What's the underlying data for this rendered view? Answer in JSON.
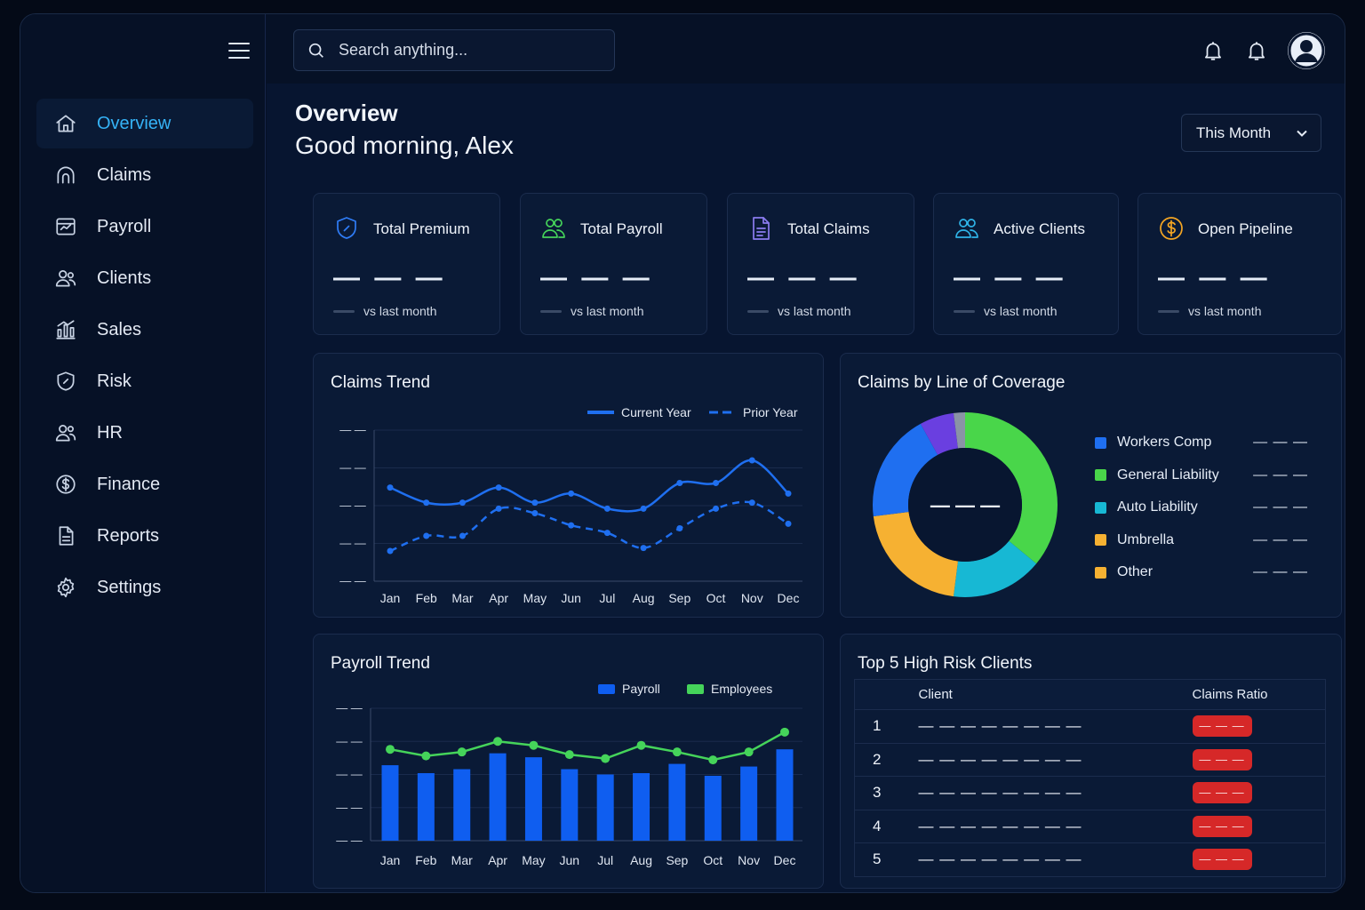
{
  "sidebar": {
    "items": [
      {
        "label": "Overview",
        "icon": "home-icon",
        "active": true
      },
      {
        "label": "Claims",
        "icon": "claims-icon"
      },
      {
        "label": "Payroll",
        "icon": "payroll-icon"
      },
      {
        "label": "Clients",
        "icon": "users-icon"
      },
      {
        "label": "Sales",
        "icon": "bar-chart-icon"
      },
      {
        "label": "Risk",
        "icon": "shield-icon"
      },
      {
        "label": "HR",
        "icon": "people-icon"
      },
      {
        "label": "Finance",
        "icon": "dollar-icon"
      },
      {
        "label": "Reports",
        "icon": "document-icon"
      },
      {
        "label": "Settings",
        "icon": "gear-icon"
      }
    ]
  },
  "topbar": {
    "search_placeholder": "Search anything..."
  },
  "header": {
    "title": "Overview",
    "greeting": "Good morning, Alex",
    "period": "This Month"
  },
  "kpis": [
    {
      "title": "Total Premium",
      "value": "— — —",
      "sub": "vs last month",
      "icon": "shield-icon",
      "color": "#2f7cf6"
    },
    {
      "title": "Total Payroll",
      "value": "— — —",
      "sub": "vs last month",
      "icon": "users-icon",
      "color": "#45d45a"
    },
    {
      "title": "Total Claims",
      "value": "— — —",
      "sub": "vs last month",
      "icon": "document-icon",
      "color": "#8b7cf0"
    },
    {
      "title": "Active Clients",
      "value": "— — —",
      "sub": "vs last month",
      "icon": "users-icon",
      "color": "#2fb4e8"
    },
    {
      "title": "Open Pipeline",
      "value": "— — —",
      "sub": "vs last month",
      "icon": "dollar-icon",
      "color": "#f5a623"
    }
  ],
  "claims_trend": {
    "title": "Claims Trend",
    "legend": {
      "current": "Current Year",
      "prior": "Prior Year"
    },
    "y_ticks": [
      "— —",
      "— —",
      "— —",
      "— —",
      "— —"
    ]
  },
  "payroll_trend": {
    "title": "Payroll Trend",
    "legend": {
      "payroll": "Payroll",
      "employees": "Employees"
    },
    "y_ticks": [
      "— —",
      "— —",
      "— —",
      "— —",
      "— —"
    ]
  },
  "coverage": {
    "title": "Claims by Line of Coverage",
    "center": "— — —",
    "items": [
      {
        "label": "Workers Comp",
        "value": "— — —",
        "color": "#1f6ff0"
      },
      {
        "label": "General Liability",
        "value": "— — —",
        "color": "#49d64a"
      },
      {
        "label": "Auto Liability",
        "value": "— — —",
        "color": "#17b8d4"
      },
      {
        "label": "Umbrella",
        "value": "— — —",
        "color": "#f6b132"
      },
      {
        "label": "Other",
        "value": "— — —",
        "color": "#f6b132"
      }
    ]
  },
  "risk_clients": {
    "title": "Top 5 High Risk Clients",
    "headers": {
      "client": "Client",
      "ratio": "Claims Ratio"
    },
    "rows": [
      {
        "rank": "1",
        "client": "— — — — — — — —",
        "ratio": "— — —"
      },
      {
        "rank": "2",
        "client": "— — — — — — — —",
        "ratio": "— — —"
      },
      {
        "rank": "3",
        "client": "— — — — — — — —",
        "ratio": "— — —"
      },
      {
        "rank": "4",
        "client": "— — — — — — — —",
        "ratio": "— — —"
      },
      {
        "rank": "5",
        "client": "— — — — — — — —",
        "ratio": "— — —"
      }
    ]
  },
  "chart_data": [
    {
      "type": "line",
      "title": "Claims Trend",
      "categories": [
        "Jan",
        "Feb",
        "Mar",
        "Apr",
        "May",
        "Jun",
        "Jul",
        "Aug",
        "Sep",
        "Oct",
        "Nov",
        "Dec"
      ],
      "series": [
        {
          "name": "Current Year",
          "color": "#1f6ff0",
          "style": "solid",
          "values": [
            62,
            52,
            52,
            62,
            52,
            58,
            48,
            48,
            65,
            65,
            80,
            58
          ]
        },
        {
          "name": "Prior Year",
          "color": "#1f6ff0",
          "style": "dashed",
          "values": [
            20,
            30,
            30,
            48,
            45,
            37,
            32,
            22,
            35,
            48,
            52,
            38
          ]
        }
      ],
      "ylim": [
        0,
        100
      ],
      "grid": true,
      "legend": "top-right"
    },
    {
      "type": "bar",
      "title": "Payroll Trend",
      "categories": [
        "Jan",
        "Feb",
        "Mar",
        "Apr",
        "May",
        "Jun",
        "Jul",
        "Aug",
        "Sep",
        "Oct",
        "Nov",
        "Dec"
      ],
      "series": [
        {
          "name": "Payroll",
          "type": "bar",
          "color": "#0f5ef0",
          "values": [
            57,
            51,
            54,
            66,
            63,
            54,
            50,
            51,
            58,
            49,
            56,
            69
          ]
        },
        {
          "name": "Employees",
          "type": "line",
          "color": "#45d45a",
          "values": [
            69,
            64,
            67,
            75,
            72,
            65,
            62,
            72,
            67,
            61,
            67,
            82
          ]
        }
      ],
      "ylim": [
        0,
        100
      ],
      "grid": true,
      "legend": "top-right"
    },
    {
      "type": "pie",
      "title": "Claims by Line of Coverage",
      "donut": true,
      "categories": [
        "General Liability",
        "Auto Liability",
        "Umbrella",
        "Workers Comp",
        "Other",
        "Unlabeled"
      ],
      "values": [
        36,
        16,
        21,
        19,
        6,
        2
      ],
      "colors": [
        "#49d64a",
        "#17b8d4",
        "#f6b132",
        "#1f6ff0",
        "#6a3fe0",
        "#8a93a6"
      ]
    }
  ]
}
